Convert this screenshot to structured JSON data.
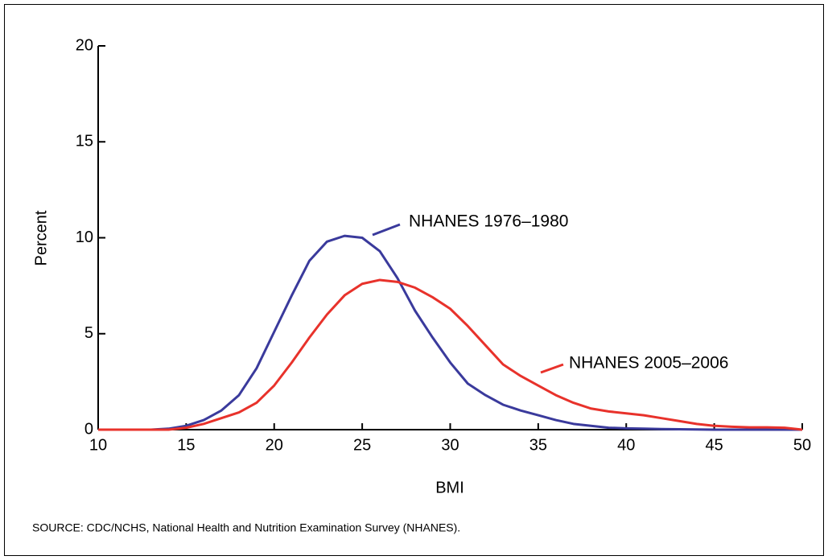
{
  "chart_data": {
    "type": "line",
    "x_label": "BMI",
    "y_label": "Percent",
    "source": "SOURCE: CDC/NCHS, National Health and Nutrition Examination Survey (NHANES).",
    "x": [
      10,
      11,
      12,
      13,
      14,
      15,
      16,
      17,
      18,
      19,
      20,
      21,
      22,
      23,
      24,
      25,
      26,
      27,
      28,
      29,
      30,
      31,
      32,
      33,
      34,
      35,
      36,
      37,
      38,
      39,
      40,
      41,
      42,
      43,
      44,
      45,
      46,
      47,
      48,
      49,
      50
    ],
    "series": [
      {
        "name": "NHANES 1976–1980",
        "color": "#3a3a9c",
        "values": [
          0,
          0,
          0,
          0,
          0.05,
          0.2,
          0.5,
          1.0,
          1.8,
          3.2,
          5.1,
          7.0,
          8.8,
          9.8,
          10.1,
          10.0,
          9.3,
          7.9,
          6.2,
          4.8,
          3.5,
          2.4,
          1.8,
          1.3,
          1.0,
          0.75,
          0.5,
          0.3,
          0.2,
          0.1,
          0.07,
          0.05,
          0.03,
          0.02,
          0.01,
          0,
          0,
          0,
          0,
          0,
          0
        ]
      },
      {
        "name": "NHANES 2005–2006",
        "color": "#e8322b",
        "values": [
          0,
          0,
          0,
          0,
          0,
          0.1,
          0.3,
          0.6,
          0.9,
          1.4,
          2.3,
          3.5,
          4.8,
          6.0,
          7.0,
          7.6,
          7.8,
          7.7,
          7.4,
          6.9,
          6.3,
          5.4,
          4.4,
          3.4,
          2.8,
          2.3,
          1.8,
          1.4,
          1.1,
          0.95,
          0.85,
          0.75,
          0.6,
          0.45,
          0.3,
          0.2,
          0.15,
          0.12,
          0.12,
          0.1,
          0
        ]
      }
    ],
    "xlim": [
      10,
      50
    ],
    "xticks": [
      10,
      15,
      20,
      25,
      30,
      35,
      40,
      45,
      50
    ],
    "ylim": [
      0,
      20
    ],
    "yticks": [
      0,
      5,
      10,
      15,
      20
    ]
  }
}
